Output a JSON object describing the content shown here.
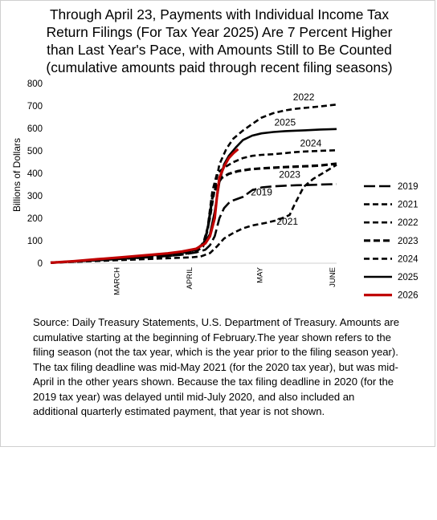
{
  "title_lines": [
    "Through April 23, Payments with Individual Income Tax",
    "Return Filings (For Tax Year 2025) Are 7 Percent Higher",
    "than Last Year's Pace, with Amounts Still to Be Counted",
    "(cumulative amounts paid through recent filing seasons)"
  ],
  "source_lines": [
    "Source: Daily Treasury Statements, U.S. Department of Treasury. Amounts are",
    "cumulative starting at the beginning of February.The year shown refers to the",
    "filing season (not the tax year, which is the year prior to the filing season year).",
    "The tax filing deadline was mid-May 2021 (for the 2020 tax year), but was mid-",
    "April in the other years shown. Because the tax filing deadline in 2020 (for the",
    "2019 tax year) was delayed until mid-July 2020, and also included an",
    "additional quarterly estimated payment, that year is not shown."
  ],
  "chart_data": {
    "type": "line",
    "ylabel": "Billions of Dollars",
    "xlabel": "",
    "ylim": [
      0,
      800
    ],
    "yticks": [
      0,
      100,
      200,
      300,
      400,
      500,
      600,
      700,
      800
    ],
    "xlim": [
      0,
      122
    ],
    "xticks": [
      {
        "label": "MARCH",
        "x": 28
      },
      {
        "label": "APRIL",
        "x": 59
      },
      {
        "label": "MAY",
        "x": 89
      },
      {
        "label": "JUNE",
        "x": 120
      }
    ],
    "legend_position": "right",
    "series": [
      {
        "name": "2019",
        "color": "#000000",
        "dash": "long",
        "points": [
          [
            0,
            2
          ],
          [
            10,
            8
          ],
          [
            20,
            15
          ],
          [
            30,
            20
          ],
          [
            40,
            25
          ],
          [
            50,
            32
          ],
          [
            56,
            38
          ],
          [
            62,
            48
          ],
          [
            66,
            60
          ],
          [
            68,
            80
          ],
          [
            70,
            120
          ],
          [
            72,
            200
          ],
          [
            74,
            245
          ],
          [
            76,
            268
          ],
          [
            78,
            280
          ],
          [
            82,
            295
          ],
          [
            86,
            325
          ],
          [
            90,
            337
          ],
          [
            95,
            342
          ],
          [
            100,
            345
          ],
          [
            105,
            347
          ],
          [
            110,
            348
          ],
          [
            115,
            350
          ],
          [
            122,
            352
          ]
        ],
        "label": "2019",
        "label_at": [
          90,
          302
        ]
      },
      {
        "name": "2021",
        "color": "#000000",
        "dash": "short",
        "points": [
          [
            0,
            2
          ],
          [
            10,
            6
          ],
          [
            20,
            10
          ],
          [
            30,
            14
          ],
          [
            40,
            18
          ],
          [
            50,
            22
          ],
          [
            60,
            26
          ],
          [
            64,
            30
          ],
          [
            68,
            45
          ],
          [
            71,
            75
          ],
          [
            74,
            110
          ],
          [
            78,
            135
          ],
          [
            82,
            155
          ],
          [
            86,
            168
          ],
          [
            92,
            180
          ],
          [
            96,
            190
          ],
          [
            100,
            205
          ],
          [
            102,
            215
          ],
          [
            104,
            260
          ],
          [
            106,
            300
          ],
          [
            108,
            340
          ],
          [
            112,
            375
          ],
          [
            116,
            400
          ],
          [
            122,
            438
          ]
        ],
        "label": "2021",
        "label_at": [
          101,
          172
        ]
      },
      {
        "name": "2022",
        "color": "#000000",
        "dash": "short",
        "points": [
          [
            0,
            2
          ],
          [
            10,
            8
          ],
          [
            20,
            16
          ],
          [
            30,
            22
          ],
          [
            40,
            30
          ],
          [
            50,
            38
          ],
          [
            56,
            45
          ],
          [
            61,
            56
          ],
          [
            64,
            75
          ],
          [
            66,
            110
          ],
          [
            68,
            200
          ],
          [
            70,
            330
          ],
          [
            72,
            440
          ],
          [
            75,
            510
          ],
          [
            78,
            555
          ],
          [
            82,
            590
          ],
          [
            86,
            620
          ],
          [
            90,
            648
          ],
          [
            95,
            668
          ],
          [
            100,
            680
          ],
          [
            105,
            688
          ],
          [
            110,
            693
          ],
          [
            115,
            698
          ],
          [
            122,
            706
          ]
        ],
        "label": "2022",
        "label_at": [
          108,
          725
        ]
      },
      {
        "name": "2023",
        "color": "#000000",
        "dash": "short-thick",
        "points": [
          [
            0,
            2
          ],
          [
            10,
            8
          ],
          [
            20,
            14
          ],
          [
            30,
            20
          ],
          [
            40,
            26
          ],
          [
            50,
            33
          ],
          [
            56,
            40
          ],
          [
            62,
            52
          ],
          [
            65,
            75
          ],
          [
            67,
            150
          ],
          [
            69,
            290
          ],
          [
            71,
            350
          ],
          [
            73,
            380
          ],
          [
            76,
            398
          ],
          [
            80,
            410
          ],
          [
            85,
            418
          ],
          [
            90,
            422
          ],
          [
            95,
            425
          ],
          [
            100,
            428
          ],
          [
            105,
            430
          ],
          [
            110,
            432
          ],
          [
            115,
            435
          ],
          [
            122,
            443
          ]
        ],
        "label": "2023",
        "label_at": [
          102,
          380
        ]
      },
      {
        "name": "2024",
        "color": "#000000",
        "dash": "short",
        "points": [
          [
            0,
            2
          ],
          [
            10,
            8
          ],
          [
            20,
            15
          ],
          [
            30,
            22
          ],
          [
            40,
            30
          ],
          [
            50,
            38
          ],
          [
            56,
            46
          ],
          [
            62,
            60
          ],
          [
            65,
            85
          ],
          [
            67,
            160
          ],
          [
            69,
            320
          ],
          [
            71,
            400
          ],
          [
            74,
            425
          ],
          [
            78,
            450
          ],
          [
            82,
            468
          ],
          [
            86,
            478
          ],
          [
            90,
            482
          ],
          [
            95,
            485
          ],
          [
            100,
            490
          ],
          [
            105,
            495
          ],
          [
            110,
            498
          ],
          [
            115,
            500
          ],
          [
            122,
            503
          ]
        ],
        "label": "2024",
        "label_at": [
          111,
          520
        ]
      },
      {
        "name": "2025",
        "color": "#000000",
        "dash": "solid",
        "points": [
          [
            0,
            2
          ],
          [
            10,
            9
          ],
          [
            20,
            17
          ],
          [
            30,
            24
          ],
          [
            40,
            32
          ],
          [
            50,
            40
          ],
          [
            56,
            48
          ],
          [
            62,
            62
          ],
          [
            66,
            95
          ],
          [
            68,
            130
          ],
          [
            70,
            230
          ],
          [
            72,
            360
          ],
          [
            74,
            440
          ],
          [
            76,
            478
          ],
          [
            79,
            515
          ],
          [
            82,
            548
          ],
          [
            86,
            568
          ],
          [
            90,
            578
          ],
          [
            95,
            584
          ],
          [
            100,
            588
          ],
          [
            105,
            590
          ],
          [
            110,
            592
          ],
          [
            115,
            595
          ],
          [
            122,
            597
          ]
        ],
        "label": "2025",
        "label_at": [
          100,
          612
        ]
      },
      {
        "name": "2026",
        "color": "#c00000",
        "dash": "solid",
        "points": [
          [
            0,
            2
          ],
          [
            10,
            9
          ],
          [
            20,
            18
          ],
          [
            30,
            26
          ],
          [
            40,
            35
          ],
          [
            50,
            44
          ],
          [
            56,
            52
          ],
          [
            62,
            64
          ],
          [
            66,
            88
          ],
          [
            68,
            120
          ],
          [
            70,
            200
          ],
          [
            71,
            300
          ],
          [
            72,
            380
          ],
          [
            74,
            430
          ],
          [
            76,
            468
          ],
          [
            78,
            490
          ],
          [
            80,
            508
          ]
        ]
      }
    ]
  }
}
